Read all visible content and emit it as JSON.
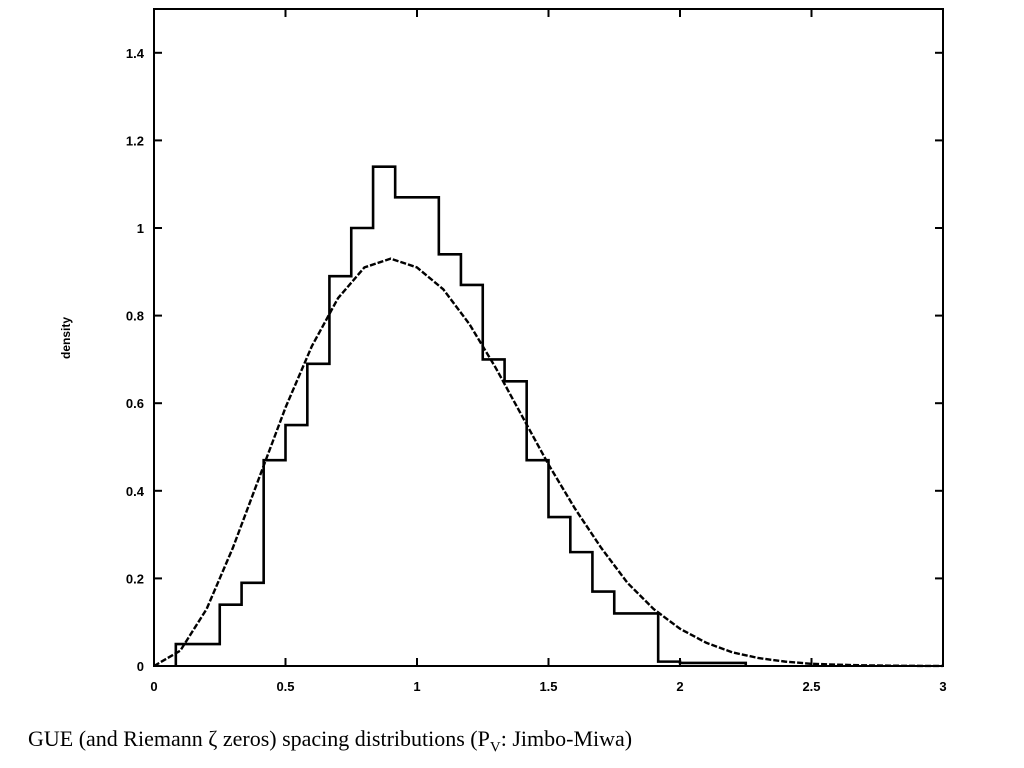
{
  "caption": {
    "before": "GUE (and Riemann ζ zeros) spacing distributions (P",
    "sub": "V",
    "after": ": Jimbo-Miwa)"
  },
  "chart_data": {
    "type": "bar",
    "title": "",
    "xlabel": "",
    "ylabel": "density",
    "xlim": [
      0,
      3
    ],
    "ylim": [
      0,
      1.5
    ],
    "x_ticks": [
      "0",
      "0.5",
      "1",
      "1.5",
      "2",
      "2.5",
      "3"
    ],
    "y_ticks": [
      "0",
      "0.2",
      "0.4",
      "0.6",
      "0.8",
      "1",
      "1.2",
      "1.4"
    ],
    "grid": false,
    "histogram": {
      "style": "step",
      "bin_edges": [
        0.083,
        0.25,
        0.333,
        0.417,
        0.5,
        0.583,
        0.667,
        0.75,
        0.833,
        0.917,
        1.083,
        1.167,
        1.25,
        1.333,
        1.417,
        1.5,
        1.583,
        1.667,
        1.75,
        1.917,
        2.0,
        2.25
      ],
      "values": [
        0.05,
        0.14,
        0.19,
        0.47,
        0.55,
        0.69,
        0.89,
        1.0,
        1.14,
        1.07,
        0.94,
        0.87,
        0.7,
        0.65,
        0.47,
        0.34,
        0.26,
        0.17,
        0.12,
        0.01,
        0.007
      ]
    },
    "curve": {
      "style": "dashed",
      "x": [
        0.0,
        0.1,
        0.2,
        0.3,
        0.4,
        0.5,
        0.6,
        0.7,
        0.8,
        0.9,
        1.0,
        1.1,
        1.2,
        1.3,
        1.4,
        1.5,
        1.6,
        1.7,
        1.8,
        1.9,
        2.0,
        2.1,
        2.2,
        2.3,
        2.4,
        2.5,
        2.6,
        2.7,
        2.8,
        2.9,
        3.0
      ],
      "y": [
        0.0,
        0.035,
        0.13,
        0.27,
        0.43,
        0.59,
        0.73,
        0.84,
        0.91,
        0.93,
        0.91,
        0.86,
        0.78,
        0.68,
        0.57,
        0.46,
        0.36,
        0.27,
        0.19,
        0.13,
        0.085,
        0.053,
        0.031,
        0.018,
        0.01,
        0.005,
        0.003,
        0.0015,
        0.0007,
        0.0003,
        0.0001
      ]
    }
  }
}
